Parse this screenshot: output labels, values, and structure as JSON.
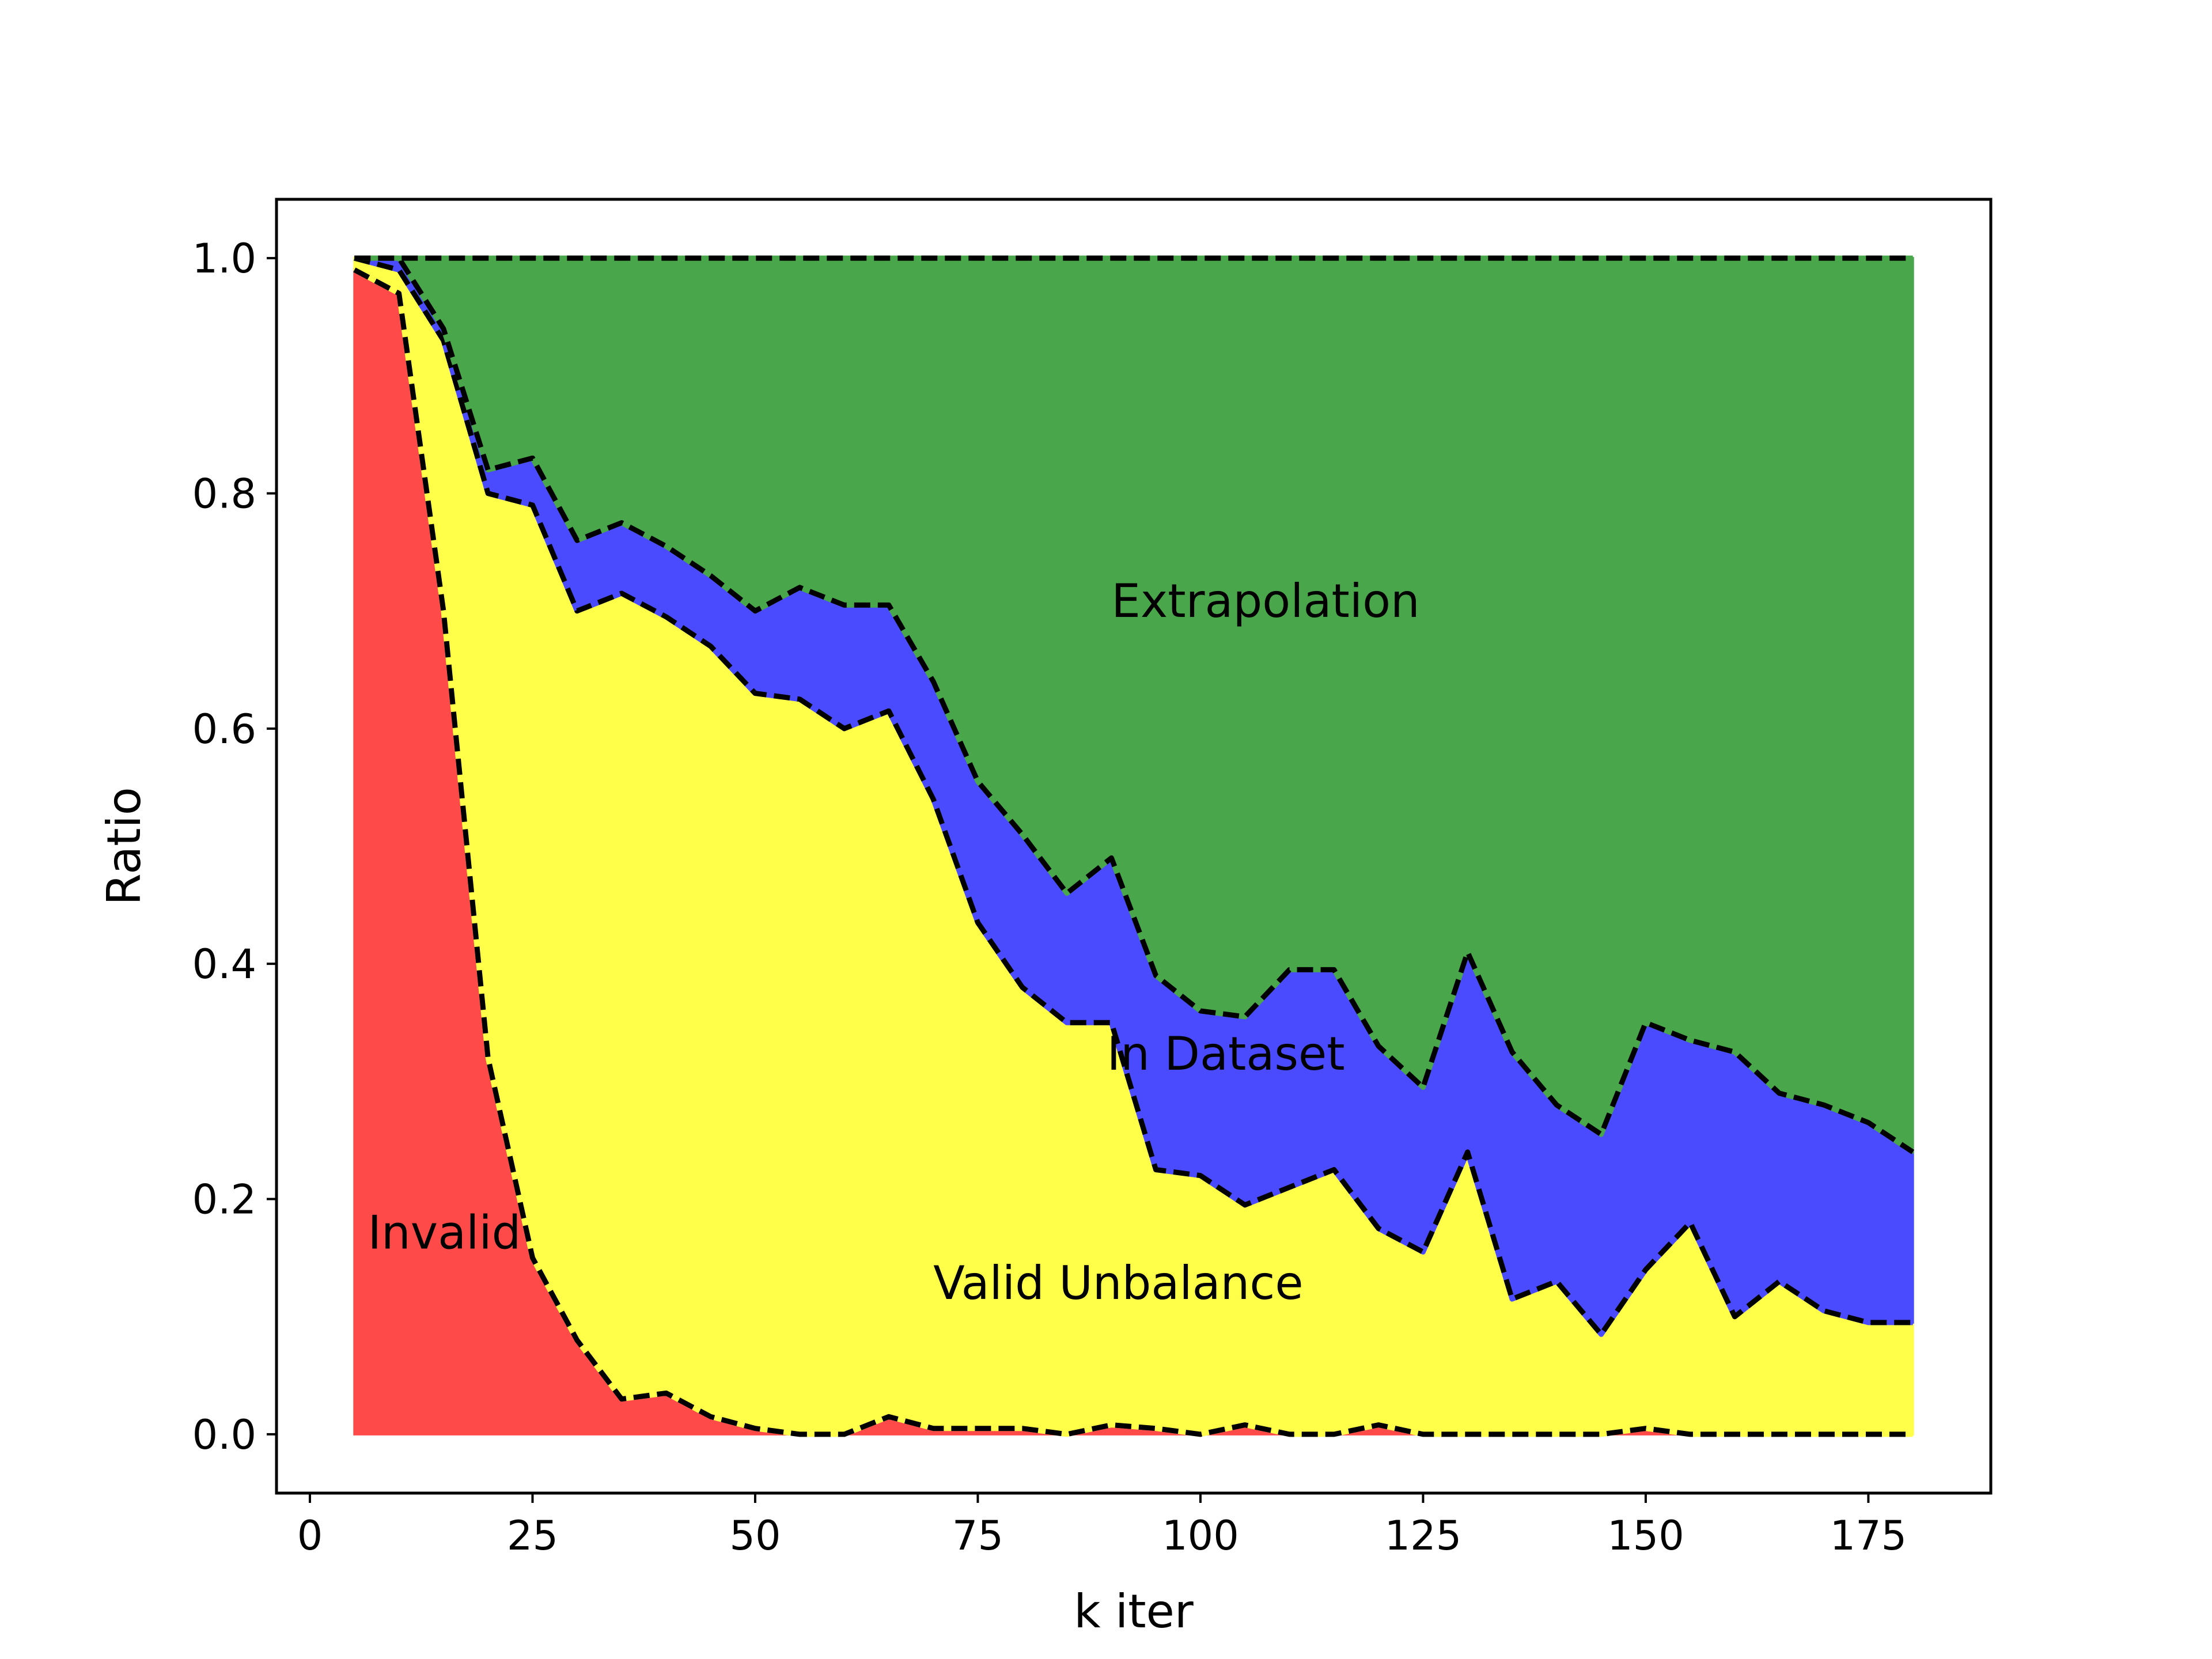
{
  "chart_data": {
    "type": "area",
    "title": "",
    "xlabel": "k iter",
    "ylabel": "Ratio",
    "xlim": [
      -3.75,
      188.75
    ],
    "ylim": [
      -0.05,
      1.05
    ],
    "xticks": [
      0,
      25,
      50,
      75,
      100,
      125,
      150,
      175
    ],
    "yticks": [
      0.0,
      0.2,
      0.4,
      0.6,
      0.8,
      1.0
    ],
    "xtick_labels": [
      "0",
      "25",
      "50",
      "75",
      "100",
      "125",
      "150",
      "175"
    ],
    "ytick_labels": [
      "0.0",
      "0.2",
      "0.4",
      "0.6",
      "0.8",
      "1.0"
    ],
    "grid": false,
    "legend": "none",
    "stacking": "cumulative",
    "x": [
      5,
      10,
      15,
      20,
      25,
      30,
      35,
      40,
      45,
      50,
      55,
      60,
      65,
      70,
      75,
      80,
      85,
      90,
      95,
      100,
      105,
      110,
      115,
      120,
      125,
      130,
      135,
      140,
      145,
      150,
      155,
      160,
      165,
      170,
      175,
      180
    ],
    "boundaries": [
      {
        "upper_of": "Invalid",
        "values": [
          0.99,
          0.97,
          0.7,
          0.32,
          0.15,
          0.08,
          0.03,
          0.035,
          0.015,
          0.005,
          0.0,
          0.0,
          0.015,
          0.005,
          0.005,
          0.005,
          0.0,
          0.008,
          0.005,
          0.0,
          0.008,
          0.0,
          0.0,
          0.008,
          0.0,
          0.0,
          0.0,
          0.0,
          0.0,
          0.005,
          0.0,
          0.0,
          0.0,
          0.0,
          0.0,
          0.0
        ]
      },
      {
        "upper_of": "Valid Unbalance",
        "values": [
          1.0,
          0.99,
          0.93,
          0.8,
          0.79,
          0.7,
          0.715,
          0.695,
          0.67,
          0.63,
          0.625,
          0.6,
          0.615,
          0.54,
          0.435,
          0.38,
          0.35,
          0.35,
          0.225,
          0.22,
          0.195,
          0.21,
          0.225,
          0.175,
          0.155,
          0.24,
          0.115,
          0.13,
          0.085,
          0.14,
          0.18,
          0.1,
          0.13,
          0.105,
          0.095,
          0.095
        ]
      },
      {
        "upper_of": "In Dataset",
        "values": [
          1.0,
          1.0,
          0.94,
          0.82,
          0.83,
          0.76,
          0.775,
          0.755,
          0.73,
          0.7,
          0.72,
          0.705,
          0.705,
          0.64,
          0.555,
          0.51,
          0.46,
          0.49,
          0.39,
          0.36,
          0.355,
          0.395,
          0.395,
          0.33,
          0.295,
          0.41,
          0.325,
          0.28,
          0.255,
          0.35,
          0.335,
          0.325,
          0.29,
          0.28,
          0.265,
          0.24
        ]
      },
      {
        "upper_of": "Extrapolation",
        "values": [
          1.0,
          1.0,
          1.0,
          1.0,
          1.0,
          1.0,
          1.0,
          1.0,
          1.0,
          1.0,
          1.0,
          1.0,
          1.0,
          1.0,
          1.0,
          1.0,
          1.0,
          1.0,
          1.0,
          1.0,
          1.0,
          1.0,
          1.0,
          1.0,
          1.0,
          1.0,
          1.0,
          1.0,
          1.0,
          1.0,
          1.0,
          1.0,
          1.0,
          1.0,
          1.0,
          1.0
        ]
      }
    ],
    "series": [
      {
        "name": "Invalid",
        "color": "#ff4a4a"
      },
      {
        "name": "Valid Unbalance",
        "color": "#ffff4a"
      },
      {
        "name": "In Dataset",
        "color": "#4a4aff"
      },
      {
        "name": "Extrapolation",
        "color": "#4aa64a"
      }
    ],
    "annotations": [
      {
        "text": "Invalid",
        "x": 6.5,
        "y": 0.158
      },
      {
        "text": "Valid Unbalance",
        "x": 70,
        "y": 0.115
      },
      {
        "text": "In Dataset",
        "x": 89.5,
        "y": 0.31
      },
      {
        "text": "Extrapolation",
        "x": 90,
        "y": 0.695
      }
    ]
  }
}
